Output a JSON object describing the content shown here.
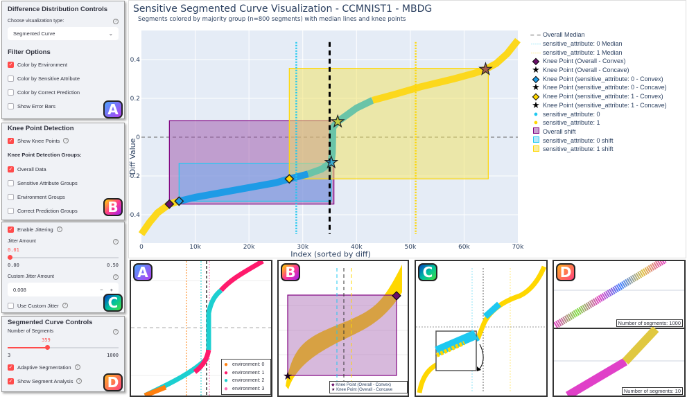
{
  "panel_a": {
    "title": "Difference Distribution Controls",
    "viz_label": "Choose visualization type:",
    "viz_value": "Segmented Curve",
    "filter_title": "Filter Options",
    "options": [
      {
        "label": "Color by Environment",
        "checked": true
      },
      {
        "label": "Color by Sensitive Attribute",
        "checked": false
      },
      {
        "label": "Color by Correct Prediction",
        "checked": false
      },
      {
        "label": "Show Error Bars",
        "checked": false
      }
    ],
    "badge": "A"
  },
  "panel_b": {
    "title": "Knee Point Detection",
    "show_knee": "Show Knee Points",
    "groups_title": "Knee Point Detection Groups:",
    "options": [
      {
        "label": "Overall Data",
        "checked": true
      },
      {
        "label": "Sensitive Attribute Groups",
        "checked": false
      },
      {
        "label": "Environment Groups",
        "checked": false
      },
      {
        "label": "Correct Prediction Groups",
        "checked": false
      }
    ],
    "badge": "B"
  },
  "panel_c": {
    "enable": "Enable Jittering",
    "jitter_label": "Jitter Amount",
    "jitter_value": "0.01",
    "jitter_fraction": 0.02,
    "jitter_min": "0.00",
    "jitter_max": "0.50",
    "custom_label": "Custom Jitter Amount",
    "custom_value": "0.008",
    "minus": "−",
    "plus": "+",
    "use_custom": "Use Custom Jitter",
    "badge": "C"
  },
  "panel_d": {
    "title": "Segmented Curve Controls",
    "segments_label": "Number of Segments",
    "segments_value": "359",
    "segments_fraction": 0.357,
    "min": "3",
    "max": "1000",
    "adaptive": "Adaptive Segmentation",
    "analysis": "Show Segment Analysis",
    "badge": "D"
  },
  "chart_data": {
    "type": "line",
    "title": "Sensitive Segmented Curve Visualization - CCMNIST1 - MBDG",
    "subtitle": "Segments colored by majority group (n=800 segments) with median lines and knee points",
    "xlabel": "Index (sorted by diff)",
    "ylabel": "Diff Value",
    "xlim": [
      0,
      70000
    ],
    "ylim": [
      -0.52,
      0.52
    ],
    "xticks": [
      0,
      10000,
      20000,
      30000,
      40000,
      50000,
      60000,
      70000
    ],
    "xtick_labels": [
      "0",
      "10k",
      "20k",
      "30k",
      "40k",
      "50k",
      "60k",
      "70k"
    ],
    "yticks": [
      0.4,
      0.2,
      0,
      -0.2,
      -0.4
    ],
    "ytick_labels": [
      "0.4",
      "0.2",
      "0",
      "−0.2",
      "−0.4"
    ],
    "grid": true,
    "curve": [
      [
        0,
        -0.5
      ],
      [
        1500,
        -0.44
      ],
      [
        3000,
        -0.39
      ],
      [
        5200,
        -0.345
      ],
      [
        7000,
        -0.33
      ],
      [
        10000,
        -0.31
      ],
      [
        15000,
        -0.285
      ],
      [
        20000,
        -0.26
      ],
      [
        25000,
        -0.235
      ],
      [
        27500,
        -0.215
      ],
      [
        31000,
        -0.19
      ],
      [
        33500,
        -0.165
      ],
      [
        35300,
        -0.13
      ],
      [
        35500,
        -0.08
      ],
      [
        35600,
        0.05
      ],
      [
        36500,
        0.08
      ],
      [
        38000,
        0.11
      ],
      [
        40000,
        0.15
      ],
      [
        43000,
        0.19
      ],
      [
        47000,
        0.22
      ],
      [
        52000,
        0.26
      ],
      [
        58000,
        0.3
      ],
      [
        62000,
        0.33
      ],
      [
        64000,
        0.35
      ],
      [
        66000,
        0.38
      ],
      [
        68000,
        0.43
      ],
      [
        70000,
        0.5
      ]
    ],
    "segments": [
      {
        "from": 0,
        "to": 7000,
        "group": "sensitive_attribute: 1"
      },
      {
        "from": 7000,
        "to": 31000,
        "group": "sensitive_attribute: 0"
      },
      {
        "from": 31000,
        "to": 43000,
        "group": "mixed"
      },
      {
        "from": 43000,
        "to": 70000,
        "group": "sensitive_attribute: 1"
      }
    ],
    "medians": [
      {
        "name": "Overall Median",
        "x": 35000,
        "color": "#000000",
        "style": "dashed"
      },
      {
        "name": "sensitive_attribute: 0 Median",
        "x": 28800,
        "color": "#1ec8f0",
        "style": "dotted"
      },
      {
        "name": "sensitive_attribute: 1 Median",
        "x": 51000,
        "color": "#ffd700",
        "style": "dotted"
      }
    ],
    "knee_points": [
      {
        "name": "Knee Point (Overall - Convex)",
        "x": 5200,
        "y": -0.345,
        "shape": "diamond",
        "color": "#6a0f6a"
      },
      {
        "name": "Knee Point (Overall - Concave)",
        "x": 64000,
        "y": 0.35,
        "shape": "star",
        "color": "#6a0f6a"
      },
      {
        "name": "Knee Point (sensitive_attribute: 0 - Convex)",
        "x": 7000,
        "y": -0.33,
        "shape": "diamond",
        "color": "#1e9be6"
      },
      {
        "name": "Knee Point (sensitive_attribute: 0 - Concave)",
        "x": 35300,
        "y": -0.13,
        "shape": "star",
        "color": "#1e9be6"
      },
      {
        "name": "Knee Point (sensitive_attribute: 1 - Convex)",
        "x": 27500,
        "y": -0.215,
        "shape": "diamond",
        "color": "#ffd700"
      },
      {
        "name": "Knee Point (sensitive_attribute: 1 - Concave)",
        "x": 36500,
        "y": 0.08,
        "shape": "star",
        "color": "#ffd700"
      }
    ],
    "shifts": [
      {
        "name": "Overall shift",
        "x": [
          5200,
          35800
        ],
        "y": [
          -0.345,
          0.085
        ],
        "fill": "#9b4fa8",
        "stroke": "#800080"
      },
      {
        "name": "sensitive_attribute: 0 shift",
        "x": [
          7000,
          35300
        ],
        "y": [
          -0.33,
          -0.135
        ],
        "fill": "#6cb4f5",
        "stroke": "#1ec8f0"
      },
      {
        "name": "sensitive_attribute: 1 shift",
        "x": [
          27500,
          64500
        ],
        "y": [
          -0.215,
          0.355
        ],
        "fill": "#f2e25c",
        "stroke": "#ffd700"
      }
    ],
    "series": [
      {
        "name": "sensitive_attribute: 0",
        "color": "#1e9be6"
      },
      {
        "name": "sensitive_attribute: 1",
        "color": "#fcd81c"
      }
    ],
    "mixed_color": "#6ac4a8",
    "legend_position": "right"
  },
  "legend": [
    "Overall Median",
    "sensitive_attribute: 0 Median",
    "sensitive_attribute: 1 Median",
    "Knee Point (Overall - Convex)",
    "Knee Point (Overall - Concave)",
    "Knee Point (sensitive_attribute: 0 - Convex)",
    "Knee Point (sensitive_attribute: 0 - Concave)",
    "Knee Point (sensitive_attribute: 1 - Convex)",
    "Knee Point (sensitive_attribute: 1 - Concave)",
    "sensitive_attribute: 0",
    "sensitive_attribute: 1",
    "Overall shift",
    "sensitive_attribute: 0 shift",
    "sensitive_attribute: 1 shift"
  ],
  "sub_a": {
    "badge": "A",
    "legend": [
      "environment: 0",
      "environment: 1",
      "environment: 2",
      "environment: 3"
    ],
    "colors": [
      "#ff7f0e",
      "#ff1a6c",
      "#1ccfd0",
      "#ff6eb4"
    ]
  },
  "sub_b": {
    "badge": "B",
    "legend": [
      "Knee Point (Overall - Convex)",
      "Knee Point (Overall - Concave"
    ]
  },
  "sub_c": {
    "badge": "C"
  },
  "sub_d": {
    "badge": "D",
    "label_top": "Number of segments: 1000",
    "label_bottom": "Number of segments: 10"
  }
}
